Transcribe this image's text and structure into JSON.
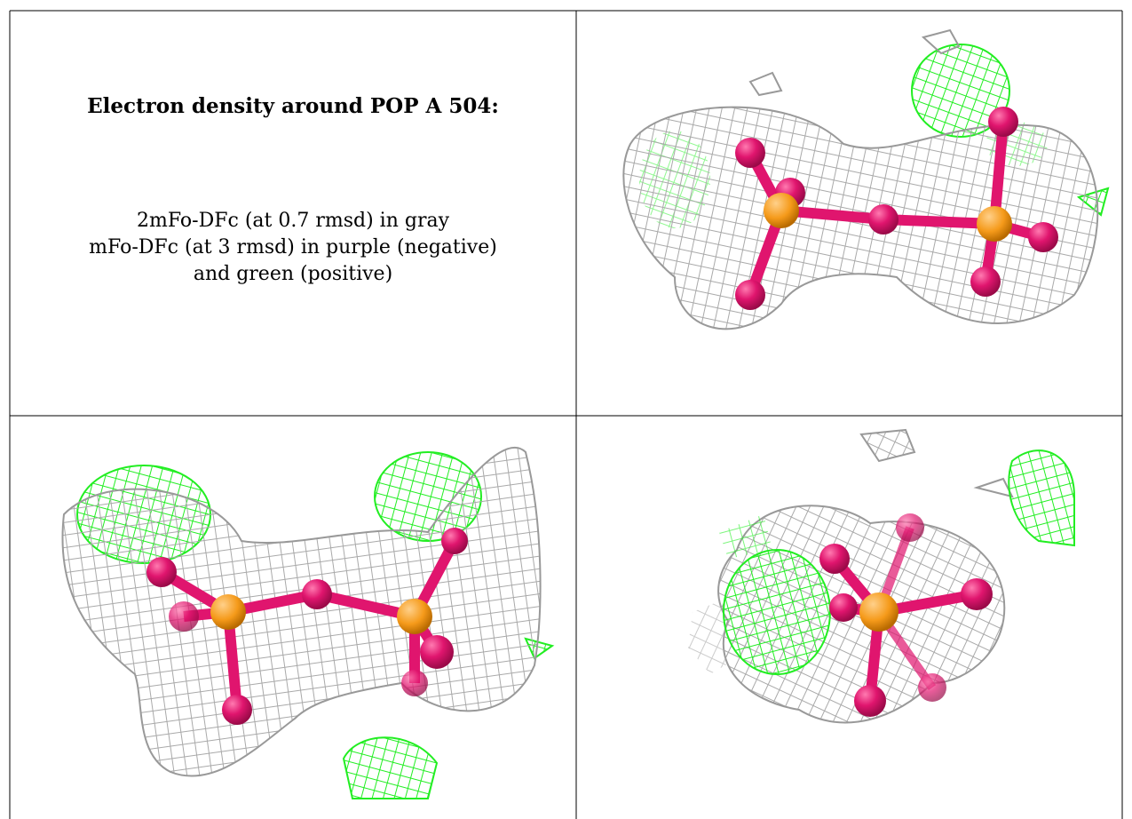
{
  "title": "Electron density around POP A 504:",
  "legend": {
    "line1": "2mFo-DFc (at 0.7 rmsd) in gray",
    "line2": "mFo-DFc (at 3 rmsd) in purple (negative)",
    "line3": "and green (positive)"
  },
  "colors": {
    "density_2fofc": "#b4b4b4",
    "density_positive": "#22ee22",
    "density_negative": "#a020f0",
    "oxygen": "#e0156e",
    "phosphorus": "#f59a1a",
    "grid_line": "#000000"
  },
  "views": [
    {
      "id": "view-1",
      "description": "pyrophosphate with density, view 1"
    },
    {
      "id": "view-2",
      "description": "pyrophosphate with density, view 2"
    },
    {
      "id": "view-3",
      "description": "pyrophosphate with density, view 3"
    }
  ]
}
